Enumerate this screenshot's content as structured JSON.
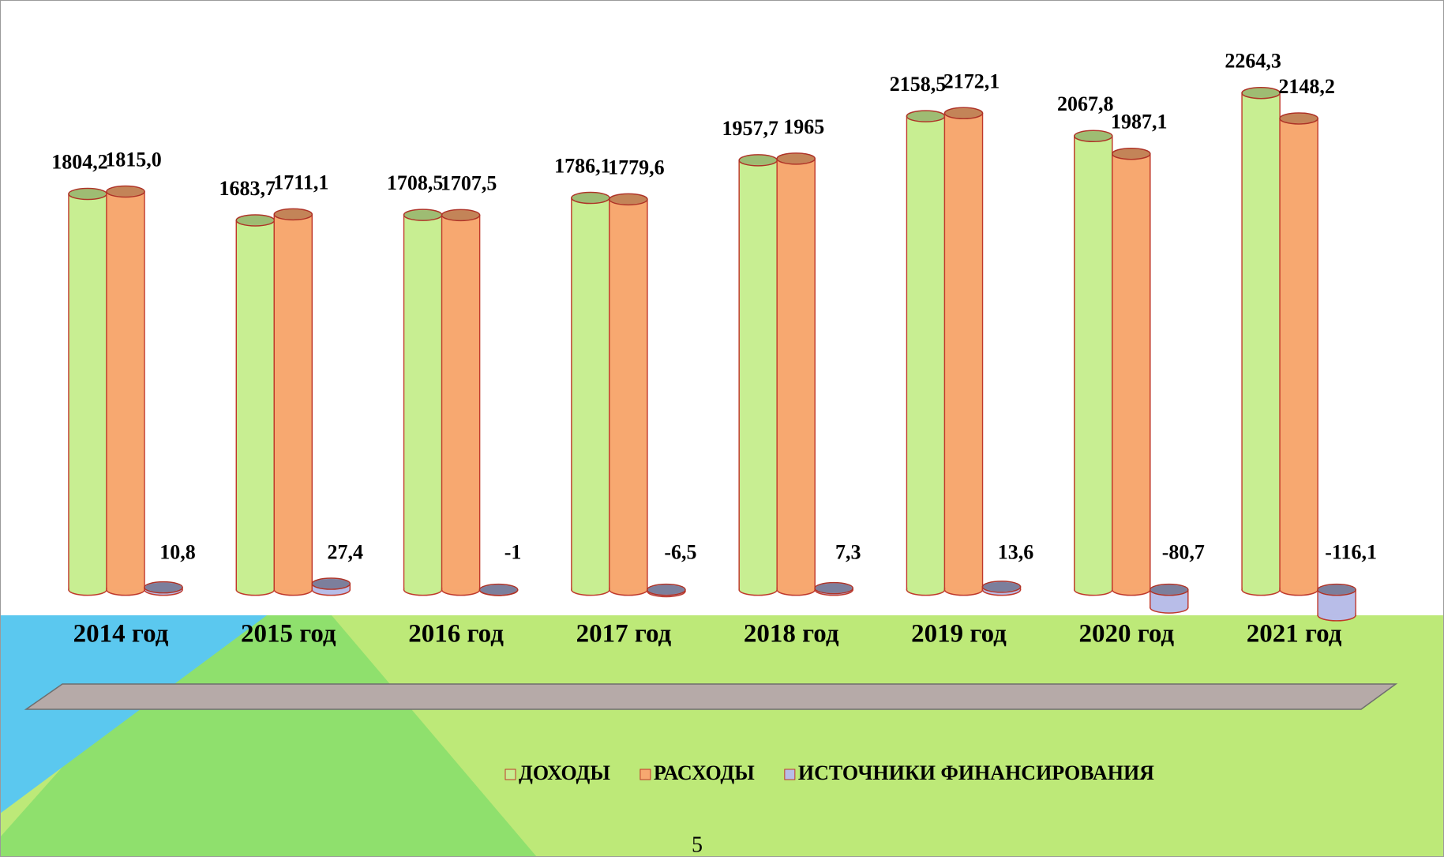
{
  "chart_data": {
    "type": "cylinder_bar",
    "categories": [
      "2014 год",
      "2015 год",
      "2016 год",
      "2017 год",
      "2018 год",
      "2019 год",
      "2020 год",
      "2021 год"
    ],
    "series": [
      {
        "name": "ДОХОДЫ",
        "color": "#c8ee92",
        "values": [
          1804.2,
          1683.7,
          1708.5,
          1786.1,
          1957.7,
          2158.5,
          2067.8,
          2264.3
        ],
        "value_labels": [
          "1804,2",
          "1683,7",
          "1708,5",
          "1786,1",
          "1957,7",
          "2158,5",
          "2067,8",
          "2264,3"
        ]
      },
      {
        "name": "РАСХОДЫ",
        "color": "#f7a870",
        "values": [
          1815.0,
          1711.1,
          1707.5,
          1779.6,
          1965,
          2172.1,
          1987.1,
          2148.2
        ],
        "value_labels": [
          "1815,0",
          "1711,1",
          "1707,5",
          "1779,6",
          "1965",
          "2172,1",
          "1987,1",
          "2148,2"
        ]
      },
      {
        "name": "ИСТОЧНИКИ ФИНАНСИРОВАНИЯ",
        "color": "#b8bde8",
        "values": [
          10.8,
          27.4,
          -1,
          -6.5,
          7.3,
          13.6,
          -80.7,
          -116.1
        ],
        "value_labels": [
          "10,8",
          "27,4",
          "-1",
          "-6,5",
          "7,3",
          "13,6",
          "-80,7",
          "-116,1"
        ]
      }
    ],
    "ylim": [
      -300,
      2400
    ],
    "legend": "bottom"
  },
  "page_number": "5"
}
